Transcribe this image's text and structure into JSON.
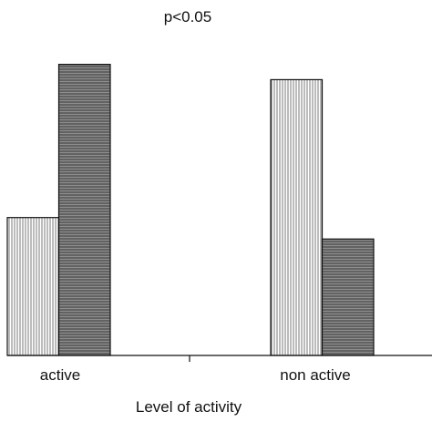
{
  "chart_data": {
    "type": "bar",
    "title": "",
    "annotation": "p<0.05",
    "xlabel": "Level of activity",
    "ylabel": "",
    "categories": [
      "active",
      "non active"
    ],
    "series": [
      {
        "values": [
          45,
          90
        ],
        "pattern": "vertical-lines",
        "color": "#ffffff"
      },
      {
        "values": [
          95,
          38
        ],
        "pattern": "horizontal-lines",
        "color": "#5a5a5a"
      }
    ],
    "ylim": [
      0,
      116
    ],
    "grid": false,
    "legend": "none"
  }
}
